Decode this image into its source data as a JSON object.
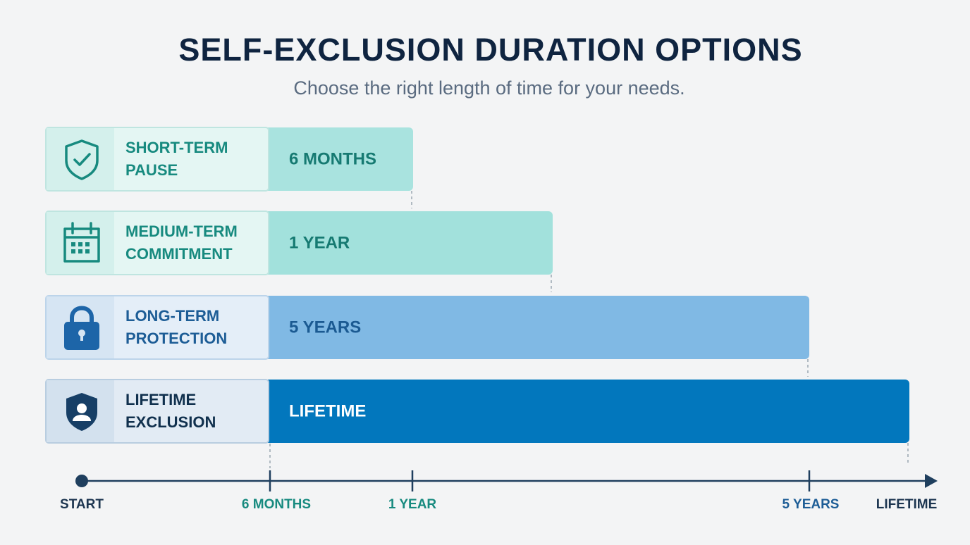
{
  "title": "SELF-EXCLUSION DURATION OPTIONS",
  "subtitle": "Choose the right length of time for your needs.",
  "options": [
    {
      "label": [
        "SHORT-TERM",
        "PAUSE"
      ],
      "duration": "6 MONTHS"
    },
    {
      "label": [
        "MEDIUM-TERM",
        "COMMITMENT"
      ],
      "duration": "1 YEAR"
    },
    {
      "label": [
        "LONG-TERM",
        "PROTECTION"
      ],
      "duration": "5 YEARS"
    },
    {
      "label": [
        "LIFETIME",
        "EXCLUSION"
      ],
      "duration": "LIFETIME"
    }
  ],
  "timeline": [
    "START",
    "6 MONTHS",
    "1 YEAR",
    "5 YEARS",
    "LIFETIME"
  ]
}
